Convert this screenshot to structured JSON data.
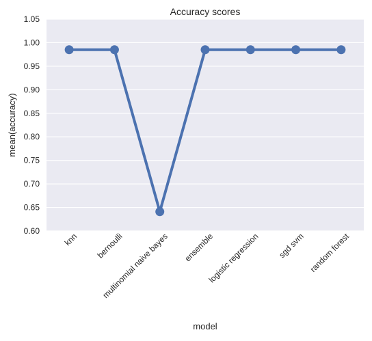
{
  "chart_data": {
    "type": "line",
    "title": "Accuracy scores",
    "xlabel": "model",
    "ylabel": "mean(accuracy)",
    "categories": [
      "knn",
      "bernoulli",
      "multinomial naive bayes",
      "ensemble",
      "logistic regression",
      "sgd svm",
      "random forest"
    ],
    "values": [
      0.985,
      0.985,
      0.641,
      0.985,
      0.985,
      0.985,
      0.985
    ],
    "ylim": [
      0.6,
      1.05
    ],
    "yticks": [
      "0.60",
      "0.65",
      "0.70",
      "0.75",
      "0.80",
      "0.85",
      "0.90",
      "0.95",
      "1.00",
      "1.05"
    ],
    "grid": true,
    "colors": {
      "series": "#4c72b0",
      "background": "#eaeaf2",
      "grid": "#ffffff"
    }
  }
}
